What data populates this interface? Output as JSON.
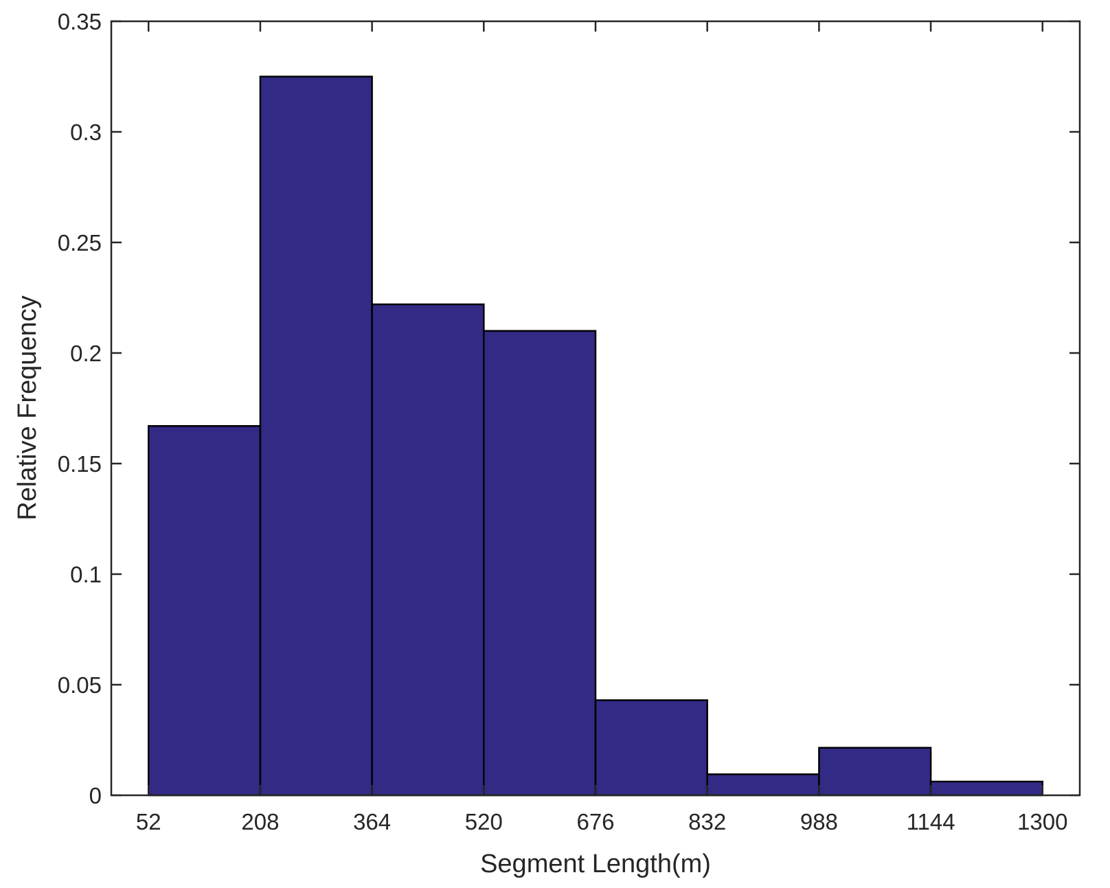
{
  "chart_data": {
    "type": "bar",
    "subtype": "histogram",
    "title": "",
    "xlabel": "Segment Length(m)",
    "ylabel": "Relative Frequency",
    "bin_edges": [
      52,
      208,
      364,
      520,
      676,
      832,
      988,
      1144,
      1300
    ],
    "values": [
      0.167,
      0.325,
      0.222,
      0.21,
      0.043,
      0.0095,
      0.0215,
      0.0062
    ],
    "x_ticks": [
      52,
      208,
      364,
      520,
      676,
      832,
      988,
      1144,
      1300
    ],
    "x_tick_labels": [
      "52",
      "208",
      "364",
      "520",
      "676",
      "832",
      "988",
      "1144",
      "1300"
    ],
    "y_ticks": [
      0,
      0.05,
      0.1,
      0.15,
      0.2,
      0.25,
      0.3,
      0.35
    ],
    "y_tick_labels": [
      "0",
      "0.05",
      "0.1",
      "0.15",
      "0.2",
      "0.25",
      "0.3",
      "0.35"
    ],
    "xlim": [
      0,
      1352
    ],
    "ylim": [
      0,
      0.35
    ],
    "bar_color": "#332a86",
    "edge_color": "#000000",
    "grid": false,
    "legend": "none"
  }
}
